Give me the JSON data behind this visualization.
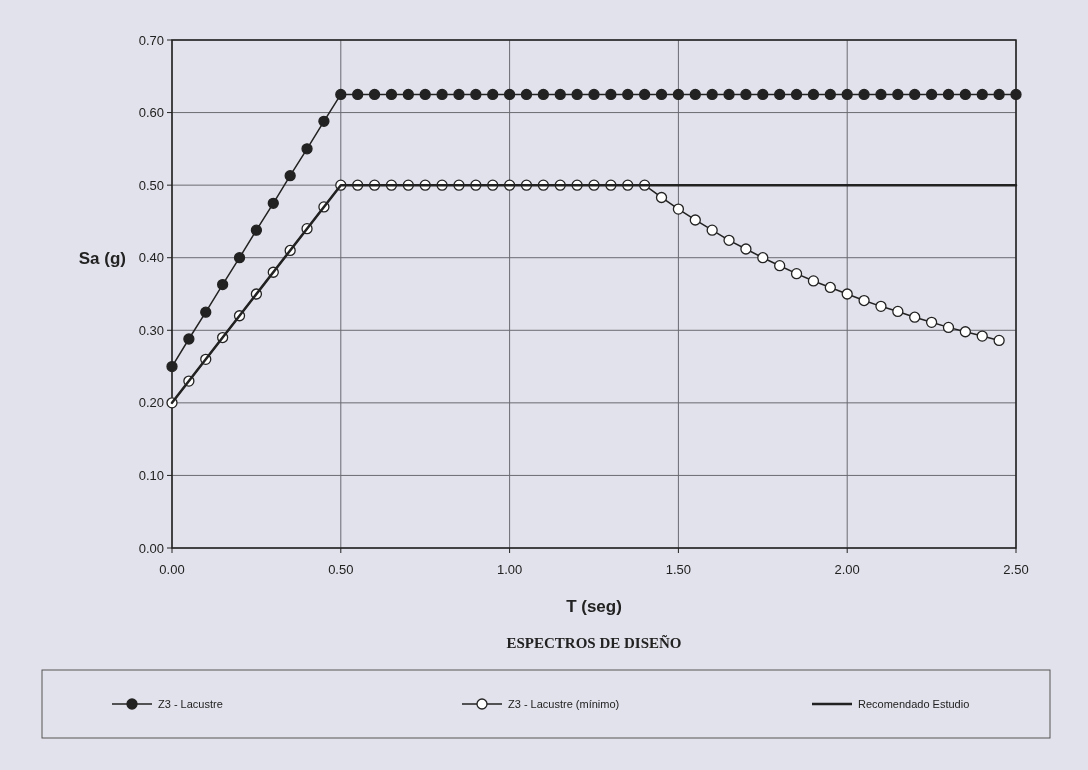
{
  "chart_data": {
    "type": "line",
    "title": "ESPECTROS DE DISEÑO",
    "xlabel": "T (seg)",
    "ylabel": "Sa (g)",
    "xlim": [
      0,
      2.5
    ],
    "xticks": [
      {
        "value": 0,
        "label": "0.00"
      },
      {
        "value": 0.5,
        "label": "0.50"
      },
      {
        "value": 1,
        "label": "1.00"
      },
      {
        "value": 1.5,
        "label": "1.50"
      },
      {
        "value": 2,
        "label": "2.00"
      },
      {
        "value": 2.5,
        "label": "2.50"
      }
    ],
    "ylim": [
      0,
      0.7
    ],
    "yticks": [
      {
        "value": 0,
        "label": "0.00"
      },
      {
        "value": 0.1,
        "label": "0.10"
      },
      {
        "value": 0.2,
        "label": "0.20"
      },
      {
        "value": 0.3,
        "label": "0.30"
      },
      {
        "value": 0.4,
        "label": "0.40"
      },
      {
        "value": 0.5,
        "label": "0.50"
      },
      {
        "value": 0.6,
        "label": "0.60"
      },
      {
        "value": 0.7,
        "label": "0.70"
      }
    ],
    "grid": true,
    "legend": "bottom",
    "line_style": "solid",
    "series": [
      {
        "name": "Z3 - Lacustre",
        "color": "#222222",
        "marker": "circle",
        "x": [
          0,
          0.05,
          0.1,
          0.15,
          0.2,
          0.25,
          0.3,
          0.35,
          0.4,
          0.45,
          0.5,
          0.55,
          0.6,
          0.65,
          0.7,
          0.75,
          0.8,
          0.85,
          0.9,
          0.95,
          1,
          1.05,
          1.1,
          1.15,
          1.2,
          1.25,
          1.3,
          1.35,
          1.4,
          1.45,
          1.5,
          1.55,
          1.6,
          1.65,
          1.7,
          1.75,
          1.8,
          1.85,
          1.9,
          1.95,
          2,
          2.05,
          2.1,
          2.15,
          2.2,
          2.25,
          2.3,
          2.35,
          2.4,
          2.45,
          2.5
        ],
        "values": [
          0.25,
          0.288,
          0.325,
          0.363,
          0.4,
          0.438,
          0.475,
          0.513,
          0.55,
          0.588,
          0.625,
          0.625,
          0.625,
          0.625,
          0.625,
          0.625,
          0.625,
          0.625,
          0.625,
          0.625,
          0.625,
          0.625,
          0.625,
          0.625,
          0.625,
          0.625,
          0.625,
          0.625,
          0.625,
          0.625,
          0.625,
          0.625,
          0.625,
          0.625,
          0.625,
          0.625,
          0.625,
          0.625,
          0.625,
          0.625,
          0.625,
          0.625,
          0.625,
          0.625,
          0.625,
          0.625,
          0.625,
          0.625,
          0.625,
          0.625,
          0.625
        ]
      },
      {
        "name": "Z3 - Lacustre (mínimo)",
        "color": "#222222",
        "marker": "circle",
        "x": [
          0,
          0.05,
          0.1,
          0.15,
          0.2,
          0.25,
          0.3,
          0.35,
          0.4,
          0.45,
          0.5,
          0.55,
          0.6,
          0.65,
          0.7,
          0.75,
          0.8,
          0.85,
          0.9,
          0.95,
          1,
          1.05,
          1.1,
          1.15,
          1.2,
          1.25,
          1.3,
          1.35,
          1.4,
          1.45,
          1.5,
          1.55,
          1.6,
          1.65,
          1.7,
          1.75,
          1.8,
          1.85,
          1.9,
          1.95,
          2,
          2.05,
          2.1,
          2.15,
          2.2,
          2.25,
          2.3,
          2.35,
          2.4,
          2.45
        ],
        "values": [
          0.2,
          0.23,
          0.26,
          0.29,
          0.32,
          0.35,
          0.38,
          0.41,
          0.44,
          0.47,
          0.5,
          0.5,
          0.5,
          0.5,
          0.5,
          0.5,
          0.5,
          0.5,
          0.5,
          0.5,
          0.5,
          0.5,
          0.5,
          0.5,
          0.5,
          0.5,
          0.5,
          0.5,
          0.5,
          0.483,
          0.467,
          0.452,
          0.438,
          0.424,
          0.412,
          0.4,
          0.389,
          0.378,
          0.368,
          0.359,
          0.35,
          0.341,
          0.333,
          0.326,
          0.318,
          0.311,
          0.304,
          0.298,
          0.292,
          0.286
        ]
      },
      {
        "name": "Recomendado Estudio",
        "color": "#222222",
        "marker": "none",
        "x": [
          0,
          0.5,
          1.4,
          2.5
        ],
        "values": [
          0.2,
          0.5,
          0.5,
          0.5
        ]
      }
    ]
  }
}
